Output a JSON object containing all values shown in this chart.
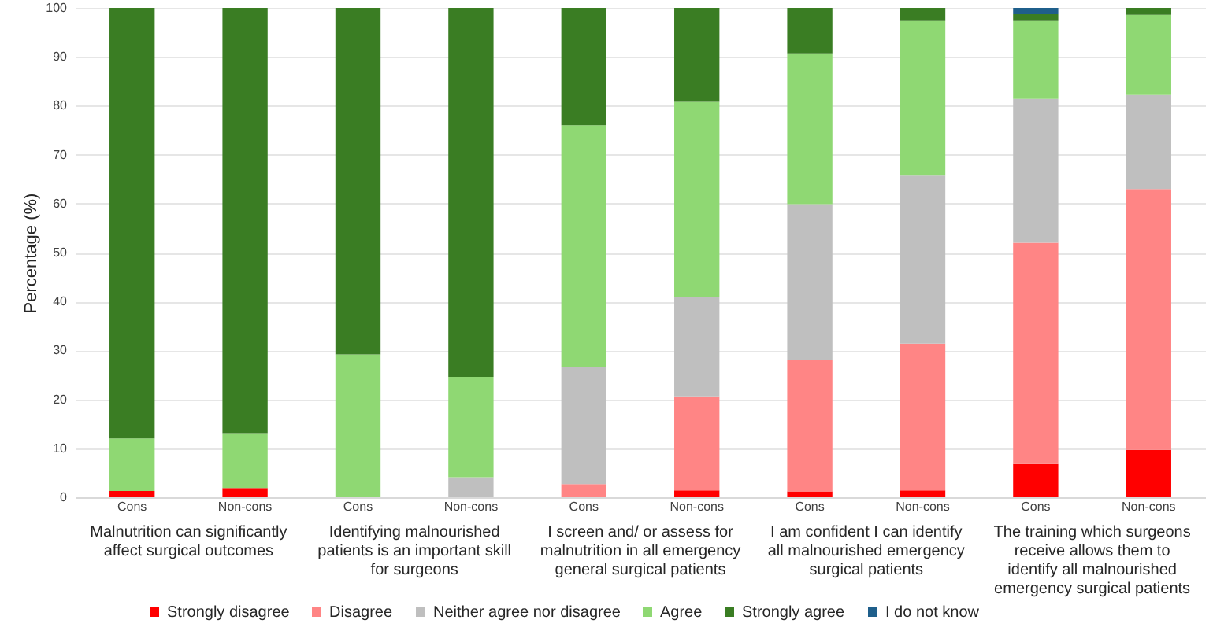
{
  "chart_data": {
    "type": "bar",
    "stacked": true,
    "ylabel": "Percentage (%)",
    "categories": [
      "Cons",
      "Non-cons",
      "Cons",
      "Non-cons",
      "Cons",
      "Non-cons",
      "Cons",
      "Non-cons",
      "Cons",
      "Non-cons"
    ],
    "series": [
      {
        "name": "Strongly disagree",
        "color": "#ff0000",
        "values": [
          1.3,
          1.9,
          null,
          null,
          null,
          1.4,
          1.2,
          1.4,
          6.8,
          9.7
        ]
      },
      {
        "name": "Disagree",
        "color": "#ff8585",
        "values": [
          null,
          null,
          null,
          null,
          2.7,
          19.2,
          26.8,
          30.0,
          45.2,
          53.3
        ]
      },
      {
        "name": "Neither agree nor disagree",
        "color": "#bfbfbf",
        "values": [
          null,
          null,
          null,
          4.1,
          24.0,
          20.4,
          31.9,
          34.3,
          29.4,
          19.2
        ]
      },
      {
        "name": "Agree",
        "color": "#8fd873",
        "values": [
          10.7,
          11.2,
          29.2,
          20.5,
          49.3,
          39.8,
          30.8,
          31.6,
          15.9,
          16.4
        ]
      },
      {
        "name": "Strongly agree",
        "color": "#3a7d23",
        "values": [
          88.0,
          86.9,
          70.8,
          75.4,
          24.0,
          19.2,
          9.3,
          2.7,
          1.4,
          1.4
        ]
      },
      {
        "name": "I do not know",
        "color": "#1f5f8b",
        "values": [
          null,
          null,
          null,
          null,
          null,
          null,
          null,
          null,
          1.3,
          null
        ]
      }
    ],
    "annotations": [
      "Malnutrition can significantly affect surgical outcomes",
      "Identifying malnourished patients is an important skill for surgeons",
      "I screen and/ or assess for malnutrition in all emergency general surgical patients",
      "I am confident I can identify all malnourished emergency surgical patients",
      "The training which surgeons receive allows them to identify all malnourished emergency surgical patients"
    ],
    "ylim": [
      0,
      100
    ],
    "yticks": [
      0,
      10,
      20,
      30,
      40,
      50,
      60,
      70,
      80,
      90,
      100
    ],
    "grid": "y",
    "legend": "bottom"
  }
}
